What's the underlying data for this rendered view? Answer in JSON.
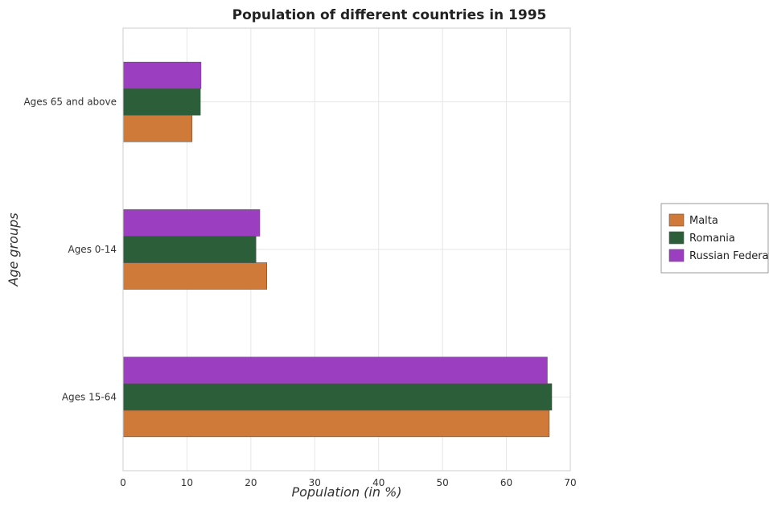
{
  "chart_data": {
    "type": "bar",
    "orientation": "horizontal",
    "title": "Population of different countries in 1995",
    "xlabel": "Population (in %)",
    "ylabel": "Age groups",
    "categories": [
      "Ages 65 and above",
      "Ages 0-14",
      "Ages 15-64"
    ],
    "series": [
      {
        "name": "Malta",
        "color": "#d07a3a",
        "values": [
          10.8,
          22.5,
          66.7
        ]
      },
      {
        "name": "Romania",
        "color": "#2c5e3a",
        "values": [
          12.1,
          20.8,
          67.1
        ]
      },
      {
        "name": "Russian Federation",
        "color": "#9b3fc0",
        "values": [
          12.2,
          21.4,
          66.4
        ]
      }
    ],
    "xlim": [
      0,
      70
    ],
    "xticks": [
      0,
      10,
      20,
      30,
      40,
      50,
      60,
      70
    ],
    "grid": true,
    "legend_position": "right"
  }
}
